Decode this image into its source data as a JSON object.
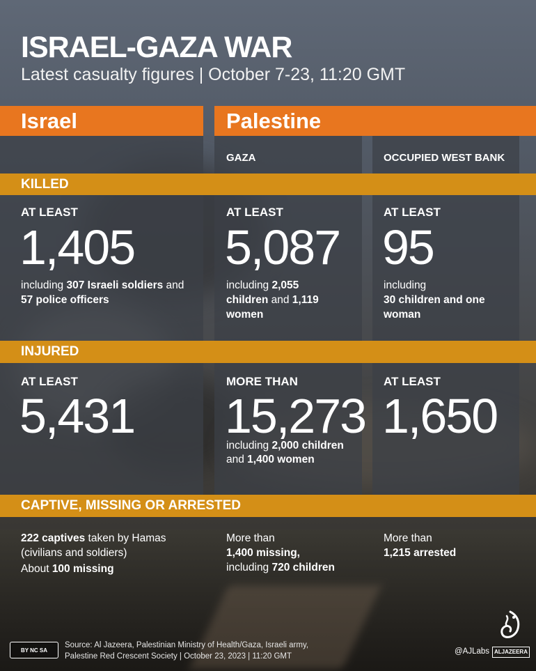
{
  "header": {
    "title": "ISRAEL-GAZA WAR",
    "subtitle": "Latest casualty figures  |  October 7-23, 11:20 GMT"
  },
  "regions": {
    "israel": "Israel",
    "palestine": "Palestine",
    "gaza": "GAZA",
    "west_bank": "OCCUPIED WEST BANK"
  },
  "sections": {
    "killed": "KILLED",
    "injured": "INJURED",
    "captive": "CAPTIVE, MISSING OR ARRESTED"
  },
  "killed": {
    "israel": {
      "label": "AT LEAST",
      "value": "1,405",
      "n1": "including ",
      "b1": "307 Israeli soldiers",
      "n2": " and ",
      "b2": "57 police officers"
    },
    "gaza": {
      "label": "AT LEAST",
      "value": "5,087",
      "n1": "including ",
      "b1": "2,055 children",
      "n2": " and ",
      "b2": "1,119 women"
    },
    "west_bank": {
      "label": "AT LEAST",
      "value": "95",
      "n1": "including",
      "b1": "30 children and one woman"
    }
  },
  "injured": {
    "israel": {
      "label": "AT LEAST",
      "value": "5,431"
    },
    "gaza": {
      "label": "MORE THAN",
      "value": "15,273",
      "n1": "including ",
      "b1": "2,000 children",
      "n2": " and ",
      "b2": "1,400 women"
    },
    "west_bank": {
      "label": "AT LEAST",
      "value": "1,650"
    }
  },
  "captive": {
    "israel": {
      "b1": "222 captives",
      "n1": " taken by Hamas (civilians and soldiers)",
      "n2": "About ",
      "b2": "100 missing"
    },
    "gaza": {
      "n1": "More than",
      "b1": "1,400 missing,",
      "n2": "including ",
      "b2": "720 children"
    },
    "west_bank": {
      "n1": "More than",
      "b1": "1,215 arrested"
    }
  },
  "footer": {
    "source_line1": "Source: Al Jazeera, Palestinian Ministry of Health/Gaza, Israeli army,",
    "source_line2": "Palestine Red Crescent Society   |   October 23, 2023   |   11:20 GMT",
    "license": "BY  NC  SA",
    "handle": "@AJLabs",
    "brand": "ALJAZEERA"
  },
  "colors": {
    "orange": "#e8761f",
    "gold": "#d48f17"
  }
}
